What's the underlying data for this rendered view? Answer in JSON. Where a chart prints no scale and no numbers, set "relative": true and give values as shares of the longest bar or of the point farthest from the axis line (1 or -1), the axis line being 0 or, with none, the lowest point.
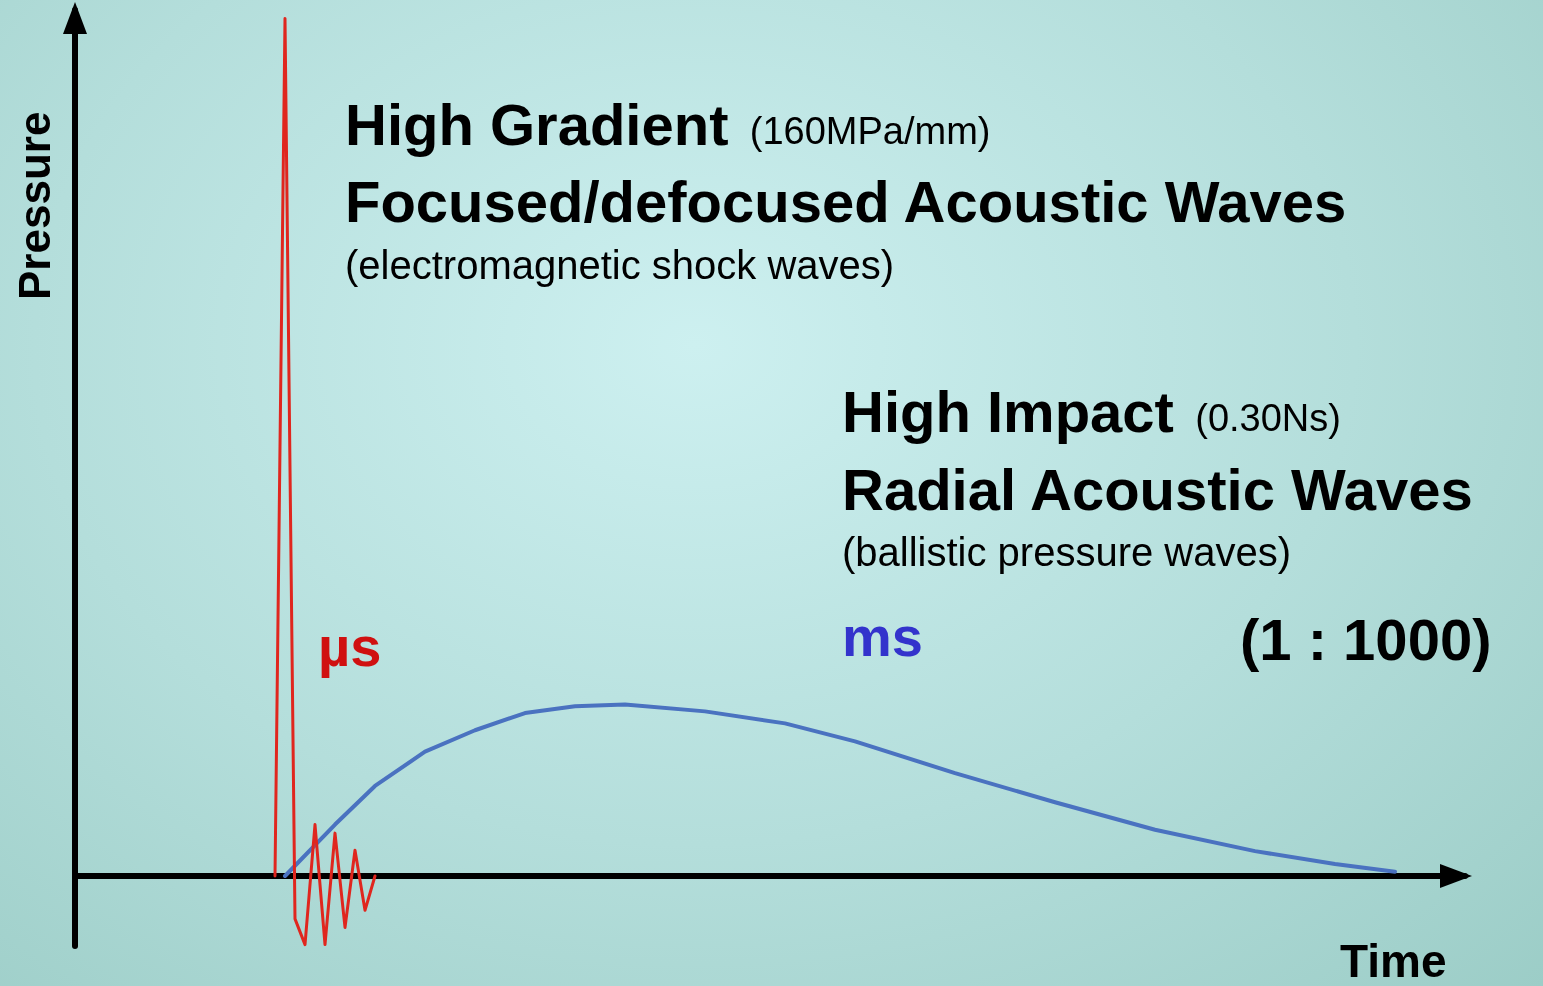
{
  "chart_data": {
    "type": "line",
    "relative": true,
    "xlabel": "Time",
    "ylabel": "Pressure",
    "categories": [
      null,
      null,
      null,
      null,
      null,
      null,
      null,
      null,
      null,
      null,
      null,
      null,
      null,
      null,
      null,
      null,
      null,
      null,
      null,
      null,
      null,
      null,
      null,
      null,
      null,
      null,
      null,
      null,
      null,
      null,
      null,
      null,
      null,
      null,
      null,
      null,
      null,
      null,
      null,
      null,
      null,
      null,
      null,
      null,
      null,
      null,
      null,
      null,
      null,
      null,
      null,
      null,
      null,
      null,
      null,
      null,
      null,
      null,
      null,
      null,
      null,
      null,
      null,
      null,
      null,
      null,
      null,
      null,
      null,
      null,
      null,
      null,
      null,
      null,
      null,
      null,
      null,
      null,
      null,
      null,
      null,
      null,
      null,
      null,
      null,
      null,
      null,
      null,
      null,
      null,
      null,
      null,
      null,
      null,
      null,
      null,
      null,
      null,
      null,
      null,
      null,
      null,
      null,
      null,
      null,
      null,
      null,
      null,
      null,
      null,
      null,
      null,
      null,
      null,
      null,
      null,
      null,
      null,
      null,
      null,
      null,
      null,
      null,
      null,
      null,
      null,
      null,
      null,
      null,
      null,
      null,
      null,
      null,
      null,
      null,
      null,
      null,
      null,
      null,
      null
    ],
    "series": [
      {
        "color": "#e0261e",
        "values": [
          null,
          null,
          null,
          null,
          null,
          null,
          null,
          null,
          null,
          null,
          null,
          null,
          null,
          null,
          null,
          null,
          null,
          null,
          null,
          null,
          0,
          1,
          -0.05,
          -0.08,
          0.06,
          -0.08,
          0.05,
          -0.06,
          0.03,
          -0.04,
          0,
          null,
          null,
          null,
          null,
          null,
          null,
          null,
          null,
          null,
          null,
          null,
          null,
          null,
          null,
          null,
          null,
          null,
          null,
          null,
          null,
          null,
          null,
          null,
          null,
          null,
          null,
          null,
          null,
          null,
          null,
          null,
          null,
          null,
          null,
          null,
          null,
          null,
          null,
          null,
          null,
          null,
          null,
          null,
          null,
          null,
          null,
          null,
          null,
          null,
          null,
          null,
          null,
          null,
          null,
          null,
          null,
          null,
          null,
          null,
          null,
          null,
          null,
          null,
          null,
          null,
          null,
          null,
          null,
          null,
          null,
          null,
          null,
          null,
          null,
          null,
          null,
          null,
          null,
          null,
          null,
          null,
          null,
          null,
          null,
          null,
          null,
          null,
          null,
          null,
          null,
          null,
          null,
          null,
          null,
          null,
          null,
          null,
          null,
          null,
          null,
          null,
          null,
          null,
          null,
          null,
          null,
          null,
          null,
          null
        ]
      },
      {
        "color": "#4a72c0",
        "values": [
          null,
          null,
          null,
          null,
          null,
          null,
          null,
          null,
          null,
          null,
          null,
          null,
          null,
          null,
          null,
          null,
          null,
          null,
          null,
          null,
          null,
          0,
          null,
          null,
          null,
          null,
          0.06,
          null,
          null,
          null,
          0.105,
          null,
          null,
          null,
          null,
          0.145,
          null,
          null,
          null,
          null,
          0.17,
          null,
          null,
          null,
          null,
          0.19,
          null,
          null,
          null,
          null,
          0.198,
          null,
          null,
          null,
          null,
          0.2,
          null,
          null,
          null,
          null,
          null,
          null,
          null,
          0.192,
          null,
          null,
          null,
          null,
          null,
          null,
          null,
          0.178,
          null,
          null,
          null,
          null,
          null,
          null,
          0.157,
          null,
          null,
          null,
          null,
          null,
          null,
          null,
          null,
          null,
          0.12,
          null,
          null,
          null,
          null,
          null,
          null,
          null,
          null,
          null,
          0.086,
          null,
          null,
          null,
          null,
          null,
          null,
          null,
          null,
          null,
          0.054,
          null,
          null,
          null,
          null,
          null,
          null,
          null,
          null,
          null,
          0.029,
          null,
          null,
          null,
          null,
          null,
          null,
          null,
          0.014,
          null,
          null,
          null,
          null,
          null,
          0.005,
          null,
          null,
          null,
          null,
          null,
          null,
          null
        ]
      }
    ],
    "annotations": [
      "High Gradient",
      "(160MPa/mm)",
      "Focused/defocused Acoustic Waves",
      "(electromagnetic shock waves)",
      "High Impact",
      "(0.30Ns)",
      "Radial Acoustic Waves",
      "(ballistic pressure waves)",
      "µs",
      "ms",
      "(1 : 1000)"
    ]
  }
}
